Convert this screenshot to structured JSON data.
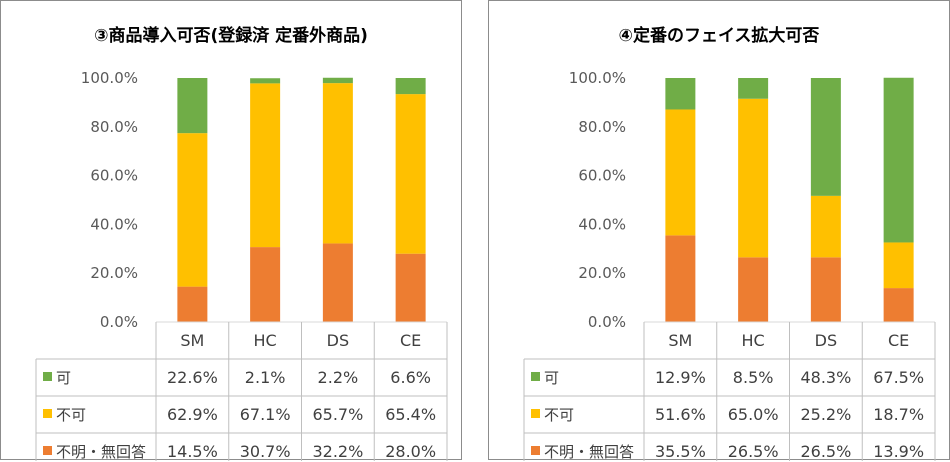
{
  "chart_data": [
    {
      "type": "bar",
      "stacked": true,
      "percent": true,
      "title": "③商品導入可否(登録済 定番外商品)",
      "categories": [
        "SM",
        "HC",
        "DS",
        "CE"
      ],
      "yticks": [
        "0.0%",
        "20.0%",
        "40.0%",
        "60.0%",
        "80.0%",
        "100.0%"
      ],
      "ylim": [
        0,
        100
      ],
      "series": [
        {
          "name": "可",
          "color": "#70ad47",
          "values": [
            22.6,
            2.1,
            2.2,
            6.6
          ],
          "labels": [
            "22.6%",
            "2.1%",
            "2.2%",
            "6.6%"
          ]
        },
        {
          "name": "不可",
          "color": "#ffc000",
          "values": [
            62.9,
            67.1,
            65.7,
            65.4
          ],
          "labels": [
            "62.9%",
            "67.1%",
            "65.7%",
            "65.4%"
          ]
        },
        {
          "name": "不明・無回答",
          "color": "#ed7d31",
          "values": [
            14.5,
            30.7,
            32.2,
            28.0
          ],
          "labels": [
            "14.5%",
            "30.7%",
            "32.2%",
            "28.0%"
          ]
        }
      ]
    },
    {
      "type": "bar",
      "stacked": true,
      "percent": true,
      "title": "④定番のフェイス拡大可否",
      "categories": [
        "SM",
        "HC",
        "DS",
        "CE"
      ],
      "yticks": [
        "0.0%",
        "20.0%",
        "40.0%",
        "60.0%",
        "80.0%",
        "100.0%"
      ],
      "ylim": [
        0,
        100
      ],
      "series": [
        {
          "name": "可",
          "color": "#70ad47",
          "values": [
            12.9,
            8.5,
            48.3,
            67.5
          ],
          "labels": [
            "12.9%",
            "8.5%",
            "48.3%",
            "67.5%"
          ]
        },
        {
          "name": "不可",
          "color": "#ffc000",
          "values": [
            51.6,
            65.0,
            25.2,
            18.7
          ],
          "labels": [
            "51.6%",
            "65.0%",
            "25.2%",
            "18.7%"
          ]
        },
        {
          "name": "不明・無回答",
          "color": "#ed7d31",
          "values": [
            35.5,
            26.5,
            26.5,
            13.9
          ],
          "labels": [
            "35.5%",
            "26.5%",
            "26.5%",
            "13.9%"
          ]
        }
      ]
    }
  ]
}
